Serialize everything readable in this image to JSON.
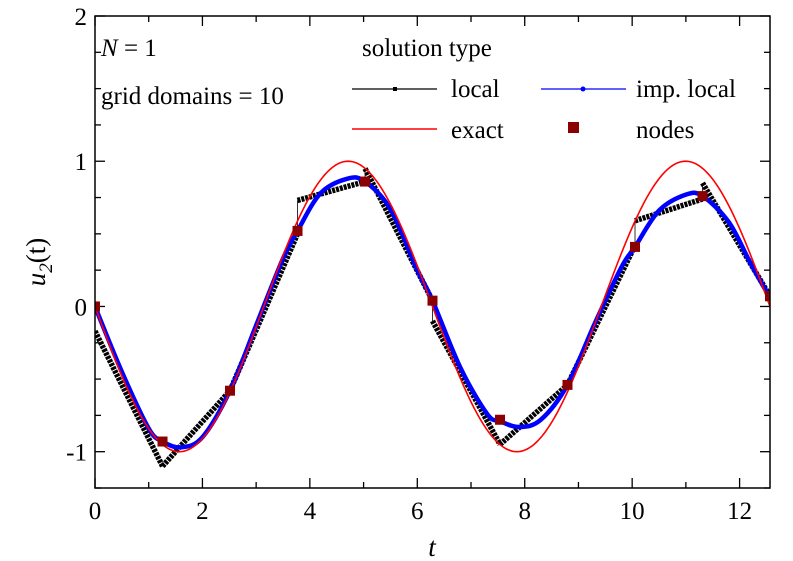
{
  "chart_data": {
    "type": "line",
    "xlabel": "t",
    "ylabel_main": "u",
    "ylabel_sub": "2",
    "ylabel_arg": "(t)",
    "xlim": [
      0,
      12.566
    ],
    "ylim": [
      -1.25,
      2.0
    ],
    "xticks": [
      0,
      2,
      4,
      6,
      8,
      10,
      12
    ],
    "yticks": [
      -1,
      0,
      1,
      2
    ],
    "x_minor_step": 1,
    "y_minor_step": 0.25,
    "grid": false,
    "annotations": {
      "n_label_var": "N",
      "n_label_rest": " = 1",
      "domains_label": "grid domains = 10"
    },
    "legend": {
      "title": "solution type",
      "placement": "top-right",
      "entries": [
        "local",
        "imp. local",
        "exact",
        "nodes"
      ]
    },
    "colors": {
      "local": "#000000",
      "imp_local": "#0000ff",
      "exact": "#ff0000",
      "nodes": "#8b0000"
    },
    "series": [
      {
        "name": "exact",
        "function": "-sin(t)"
      },
      {
        "name": "local",
        "segments": [
          {
            "x": [
              0,
              1.257
            ],
            "y": [
              -0.17,
              -1.1
            ]
          },
          {
            "x": [
              1.257,
              2.513
            ],
            "y": [
              -1.1,
              -0.58
            ]
          },
          {
            "x": [
              2.513,
              3.77
            ],
            "y": [
              -0.58,
              0.5
            ]
          },
          {
            "x": [
              3.77,
              5.027
            ],
            "y": [
              0.73,
              0.86
            ]
          },
          {
            "x": [
              5.027,
              6.283
            ],
            "y": [
              0.95,
              0.04
            ]
          },
          {
            "x": [
              6.283,
              7.54
            ],
            "y": [
              -0.1,
              -0.95
            ]
          },
          {
            "x": [
              7.54,
              8.796
            ],
            "y": [
              -0.95,
              -0.54
            ]
          },
          {
            "x": [
              8.796,
              10.053
            ],
            "y": [
              -0.54,
              0.42
            ]
          },
          {
            "x": [
              10.053,
              11.31
            ],
            "y": [
              0.59,
              0.74
            ]
          },
          {
            "x": [
              11.31,
              12.566
            ],
            "y": [
              0.85,
              0.07
            ]
          }
        ]
      },
      {
        "name": "imp. local",
        "x": [
          0,
          0.5,
          1.0,
          1.257,
          1.6,
          2.0,
          2.513,
          3.0,
          3.5,
          3.77,
          4.2,
          4.7,
          5.027,
          5.5,
          6.0,
          6.283,
          6.8,
          7.3,
          7.54,
          7.9,
          8.3,
          8.796,
          9.3,
          9.8,
          10.053,
          10.5,
          11.0,
          11.31,
          11.8,
          12.2,
          12.566
        ],
        "y": [
          0.0,
          -0.45,
          -0.84,
          -0.93,
          -0.97,
          -0.9,
          -0.58,
          -0.13,
          0.33,
          0.52,
          0.78,
          0.88,
          0.86,
          0.67,
          0.25,
          0.04,
          -0.42,
          -0.74,
          -0.79,
          -0.83,
          -0.78,
          -0.54,
          -0.12,
          0.27,
          0.41,
          0.66,
          0.77,
          0.76,
          0.58,
          0.3,
          0.06
        ]
      },
      {
        "name": "nodes",
        "x": [
          0,
          1.257,
          2.513,
          3.77,
          5.027,
          6.283,
          7.54,
          8.796,
          10.053,
          11.31,
          12.566
        ],
        "y": [
          0.0,
          -0.93,
          -0.58,
          0.52,
          0.86,
          0.04,
          -0.78,
          -0.54,
          0.41,
          0.76,
          0.07
        ]
      }
    ]
  }
}
